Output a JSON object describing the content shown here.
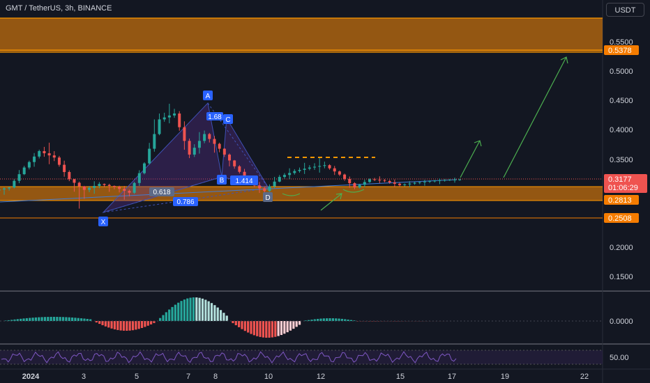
{
  "header": {
    "title": "GMT / TetherUS, 3h, BINANCE",
    "currency": "USDT"
  },
  "colors": {
    "background": "#131722",
    "up": "#26a69a",
    "down": "#ef5350",
    "zone": "#b8690e",
    "zone_line": "#ff9800",
    "pattern": "#3a3a9a",
    "arrow": "#4caf50",
    "label": "#2962ff"
  },
  "price_axis": {
    "ticks": [
      "0.5500",
      "0.5000",
      "0.4500",
      "0.4000",
      "0.3500",
      "0.2000",
      "0.1500"
    ]
  },
  "price_tags": {
    "top": "0.5378",
    "current": "0.3177",
    "countdown": "01:06:29",
    "zone_low": "0.2813",
    "support": "0.2508"
  },
  "macd_axis": {
    "label": "0.0000"
  },
  "rsi_axis": {
    "label": "50.00"
  },
  "time_axis": {
    "ticks": [
      "2024",
      "3",
      "5",
      "7",
      "8",
      "10",
      "12",
      "15",
      "17",
      "19",
      "22"
    ]
  },
  "pattern_labels": {
    "X": "X",
    "A": "A",
    "B": "B",
    "C": "C",
    "D": "D"
  },
  "ratio_labels": {
    "r_bc": "1.414",
    "r_xb": "0.618",
    "r_ab": "0.786",
    "r_top": "1.68"
  },
  "chart_data": {
    "type": "candlestick",
    "series": [
      {
        "name": "GMT / TetherUS, 3h, BINANCE"
      }
    ],
    "points": [
      {
        "t": "2024-01-01",
        "o": 0.299,
        "h": 0.306,
        "l": 0.29,
        "c": 0.304
      },
      {
        "t": "2024-01-02",
        "o": 0.304,
        "h": 0.345,
        "l": 0.3,
        "c": 0.338
      },
      {
        "t": "2024-01-02 12h",
        "o": 0.338,
        "h": 0.372,
        "l": 0.33,
        "c": 0.366
      },
      {
        "t": "2024-01-03",
        "o": 0.366,
        "h": 0.384,
        "l": 0.34,
        "c": 0.355
      },
      {
        "t": "2024-01-03 12h",
        "o": 0.355,
        "h": 0.362,
        "l": 0.31,
        "c": 0.318
      },
      {
        "t": "2024-01-04",
        "o": 0.318,
        "h": 0.32,
        "l": 0.262,
        "c": 0.3
      },
      {
        "t": "2024-01-05",
        "o": 0.3,
        "h": 0.318,
        "l": 0.29,
        "c": 0.31
      },
      {
        "t": "2024-01-05 12h",
        "o": 0.31,
        "h": 0.312,
        "l": 0.295,
        "c": 0.305
      },
      {
        "t": "2024-01-06",
        "o": 0.305,
        "h": 0.31,
        "l": 0.28,
        "c": 0.295
      },
      {
        "t": "2024-01-06 12h",
        "o": 0.295,
        "h": 0.35,
        "l": 0.29,
        "c": 0.345
      },
      {
        "t": "2024-01-07",
        "o": 0.345,
        "h": 0.445,
        "l": 0.34,
        "c": 0.42
      },
      {
        "t": "2024-01-07 12h",
        "o": 0.42,
        "h": 0.45,
        "l": 0.41,
        "c": 0.43
      },
      {
        "t": "2024-01-08",
        "o": 0.43,
        "h": 0.44,
        "l": 0.345,
        "c": 0.36
      },
      {
        "t": "2024-01-08 12h",
        "o": 0.36,
        "h": 0.41,
        "l": 0.35,
        "c": 0.395
      },
      {
        "t": "2024-01-09",
        "o": 0.395,
        "h": 0.4,
        "l": 0.355,
        "c": 0.37
      },
      {
        "t": "2024-01-09 12h",
        "o": 0.37,
        "h": 0.372,
        "l": 0.33,
        "c": 0.34
      },
      {
        "t": "2024-01-10",
        "o": 0.34,
        "h": 0.345,
        "l": 0.305,
        "c": 0.312
      },
      {
        "t": "2024-01-10 12h",
        "o": 0.312,
        "h": 0.318,
        "l": 0.29,
        "c": 0.298
      },
      {
        "t": "2024-01-11",
        "o": 0.298,
        "h": 0.33,
        "l": 0.295,
        "c": 0.322
      },
      {
        "t": "2024-01-11 12h",
        "o": 0.322,
        "h": 0.34,
        "l": 0.315,
        "c": 0.332
      },
      {
        "t": "2024-01-12",
        "o": 0.332,
        "h": 0.348,
        "l": 0.325,
        "c": 0.338
      },
      {
        "t": "2024-01-12 12h",
        "o": 0.338,
        "h": 0.357,
        "l": 0.328,
        "c": 0.342
      },
      {
        "t": "2024-01-13",
        "o": 0.342,
        "h": 0.346,
        "l": 0.32,
        "c": 0.326
      },
      {
        "t": "2024-01-13 12h",
        "o": 0.326,
        "h": 0.33,
        "l": 0.296,
        "c": 0.304
      },
      {
        "t": "2024-01-14",
        "o": 0.304,
        "h": 0.322,
        "l": 0.3,
        "c": 0.318
      },
      {
        "t": "2024-01-14 12h",
        "o": 0.318,
        "h": 0.324,
        "l": 0.31,
        "c": 0.315
      },
      {
        "t": "2024-01-15",
        "o": 0.315,
        "h": 0.32,
        "l": 0.302,
        "c": 0.308
      },
      {
        "t": "2024-01-15 12h",
        "o": 0.308,
        "h": 0.316,
        "l": 0.303,
        "c": 0.312
      },
      {
        "t": "2024-01-16",
        "o": 0.312,
        "h": 0.318,
        "l": 0.306,
        "c": 0.315
      },
      {
        "t": "2024-01-16 12h",
        "o": 0.315,
        "h": 0.32,
        "l": 0.309,
        "c": 0.317
      },
      {
        "t": "2024-01-17",
        "o": 0.317,
        "h": 0.321,
        "l": 0.312,
        "c": 0.3177
      }
    ],
    "zones": [
      {
        "high": 0.585,
        "low": 0.5378
      },
      {
        "high": 0.3,
        "low": 0.2813
      }
    ],
    "levels": [
      0.2508,
      0.3177
    ],
    "ylim": [
      0.1,
      0.6
    ]
  }
}
